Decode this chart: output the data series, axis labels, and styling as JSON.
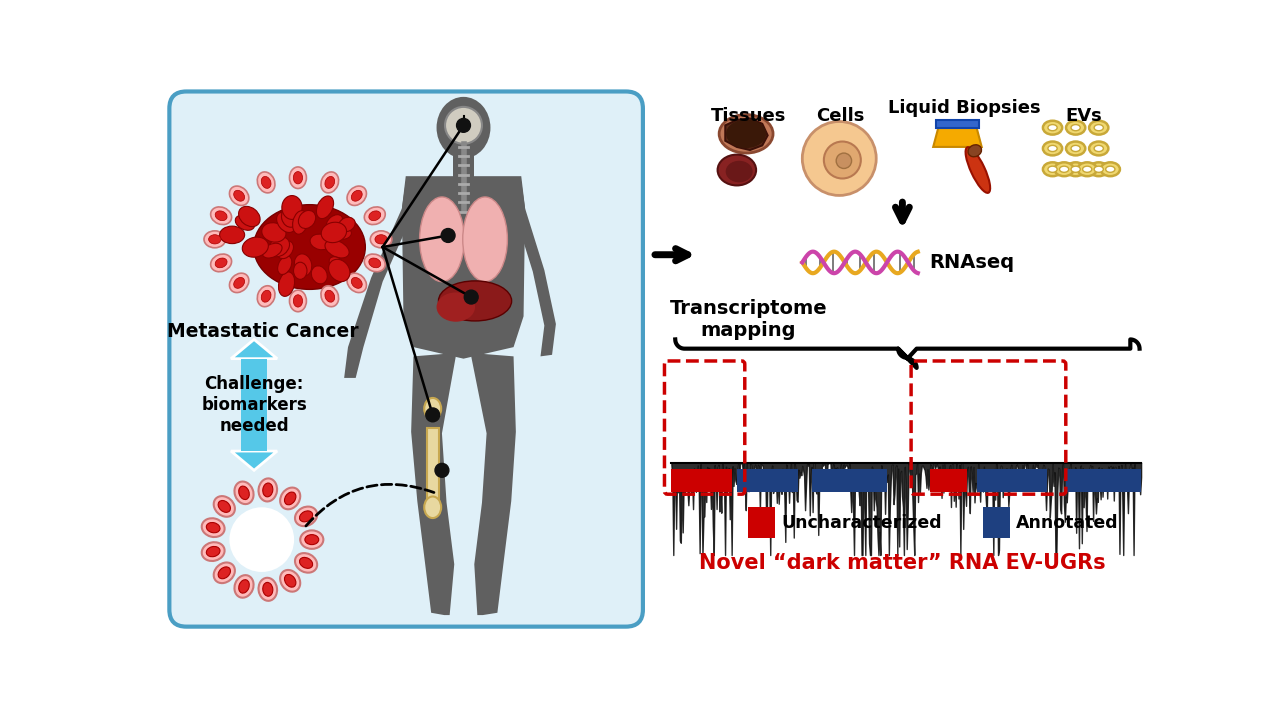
{
  "bg_color": "#ffffff",
  "left_panel_bg": "#dff0f8",
  "left_panel_border": "#4a9ec4",
  "red_color": "#cc0000",
  "blue_color": "#1e4080",
  "cyan_color": "#55c8e8",
  "body_color": "#606060",
  "bone_color": "#e8d8a0",
  "lung_color": "#f0b0b0",
  "liver_color": "#8b1a1a",
  "pink_cell": "#f5aaaa",
  "dark_red_cell": "#bb0000",
  "title_text": "Metastatic Cancer",
  "challenge_text": "Challenge:\nbiomarkers\nneeded",
  "transcriptome_text": "Transcriptome\nmapping",
  "rnaseq_text": "RNAseq",
  "tissues_text": "Tissues",
  "cells_text": "Cells",
  "liquid_text": "Liquid Biopsies",
  "evs_text": "EVs",
  "unchar_text": "Uncharacterized",
  "annot_text": "Annotated",
  "novel_text": "Novel “dark matter” RNA EV-UGRs"
}
